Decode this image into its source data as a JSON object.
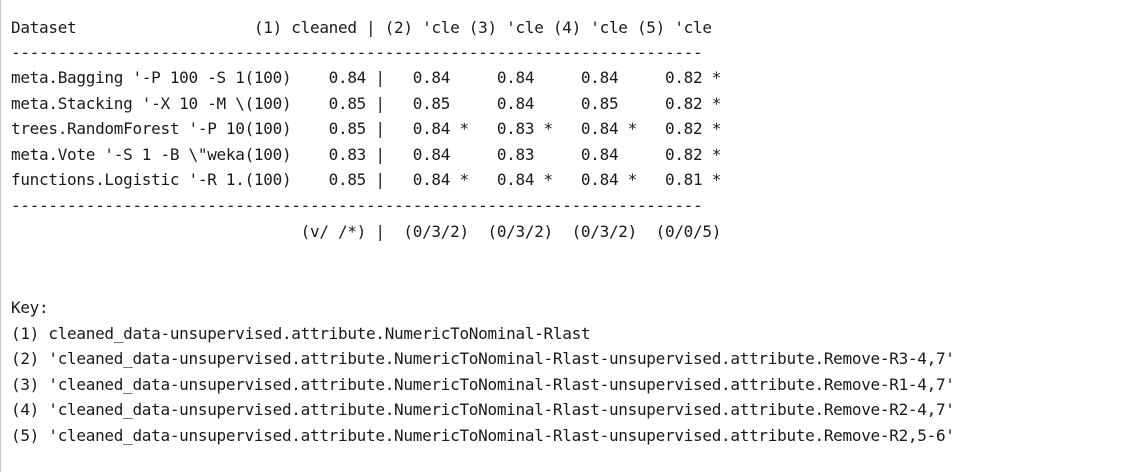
{
  "results": {
    "header": "Dataset                   (1) cleaned | (2) 'cle (3) 'cle (4) 'cle (5) 'cle",
    "separator_top": "--------------------------------------------------------------------------",
    "rows": [
      "meta.Bagging '-P 100 -S 1(100)    0.84 |   0.84     0.84     0.84     0.82 *",
      "meta.Stacking '-X 10 -M \\(100)    0.85 |   0.85     0.84     0.85     0.82 *",
      "trees.RandomForest '-P 10(100)    0.85 |   0.84 *   0.83 *   0.84 *   0.82 *",
      "meta.Vote '-S 1 -B \\\"weka(100)    0.83 |   0.84     0.83     0.84     0.82 *",
      "functions.Logistic '-R 1.(100)    0.85 |   0.84 *   0.84 *   0.84 *   0.81 *"
    ],
    "separator_bottom": "--------------------------------------------------------------------------",
    "summary": "                               (v/ /*) |  (0/3/2)  (0/3/2)  (0/3/2)  (0/0/5)"
  },
  "key": {
    "title": "Key:",
    "entries": [
      "(1) cleaned_data-unsupervised.attribute.NumericToNominal-Rlast",
      "(2) 'cleaned_data-unsupervised.attribute.NumericToNominal-Rlast-unsupervised.attribute.Remove-R3-4,7'",
      "(3) 'cleaned_data-unsupervised.attribute.NumericToNominal-Rlast-unsupervised.attribute.Remove-R1-4,7'",
      "(4) 'cleaned_data-unsupervised.attribute.NumericToNominal-Rlast-unsupervised.attribute.Remove-R2-4,7'",
      "(5) 'cleaned_data-unsupervised.attribute.NumericToNominal-Rlast-unsupervised.attribute.Remove-R2,5-6'"
    ]
  }
}
